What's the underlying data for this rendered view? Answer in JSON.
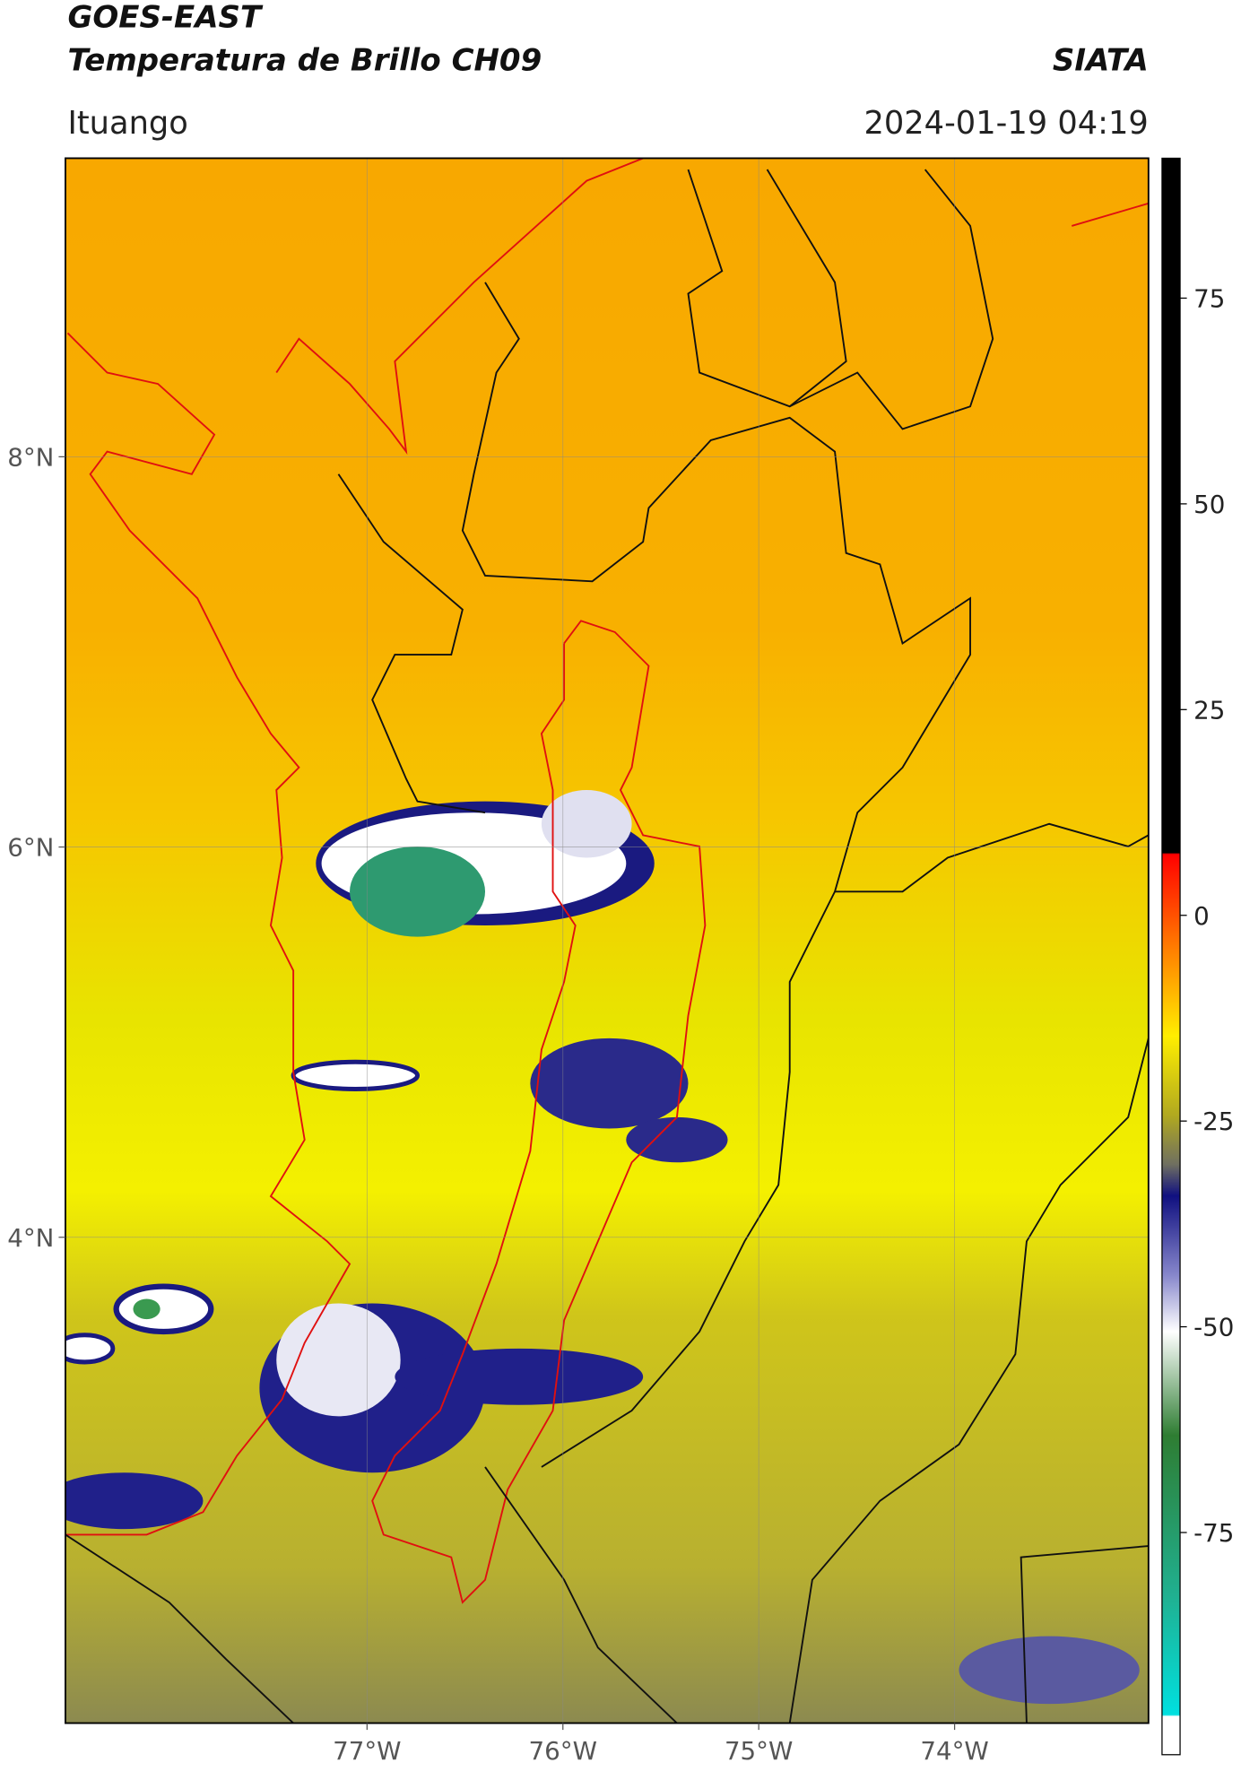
{
  "map": {
    "title": "GOES-EAST",
    "subtitle": "Temperatura de Brillo CH09",
    "source": "SIATA",
    "location": "Ituango",
    "datetime": "2024-01-19 04:19",
    "xlim": [
      -78.54,
      -73.01
    ],
    "ylim": [
      1.51,
      9.53
    ],
    "xticks": [
      {
        "value": -77,
        "label": "77°W"
      },
      {
        "value": -76,
        "label": "76°W"
      },
      {
        "value": -75,
        "label": "75°W"
      },
      {
        "value": -74,
        "label": "74°W"
      }
    ],
    "yticks": [
      {
        "value": 8,
        "label": "8°N"
      },
      {
        "value": 6,
        "label": "6°N"
      },
      {
        "value": 4,
        "label": "4°N"
      }
    ],
    "grid": true,
    "colorbar": {
      "lim": [
        -102,
        92
      ],
      "ticks": [
        75,
        50,
        25,
        0,
        -25,
        -50,
        -75
      ]
    }
  }
}
